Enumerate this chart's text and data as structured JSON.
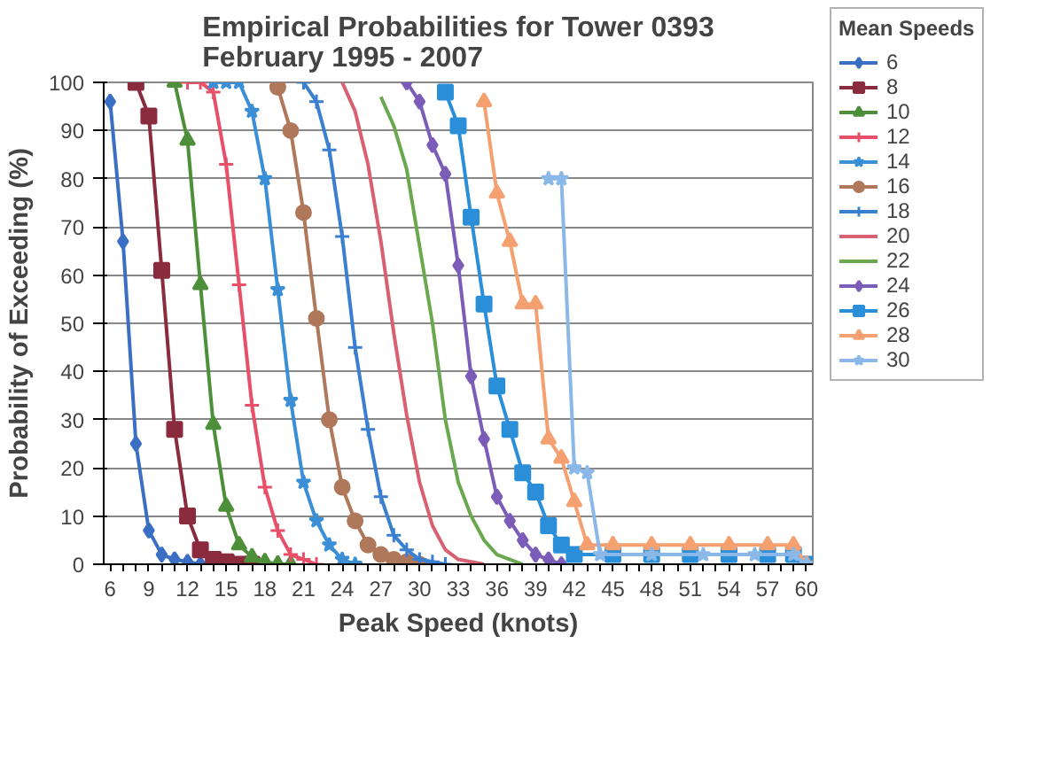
{
  "chart_data": {
    "type": "line",
    "title": "Empirical Probabilities for Tower 0393\nFebruary 1995 - 2007",
    "xlabel": "Peak Speed (knots)",
    "ylabel": "Probability of Exceeding (%)",
    "legend_title": "Mean Speeds",
    "legend": "right",
    "grid": "y",
    "line_style": "solid",
    "xlim": [
      5.5,
      60.5
    ],
    "ylim": [
      0,
      100
    ],
    "xticks": [
      6,
      {
        "value": 7,
        "label": null
      },
      {
        "value": 8,
        "label": null
      },
      9,
      {
        "value": 10,
        "label": null
      },
      {
        "value": 11,
        "label": null
      },
      12,
      {
        "value": 13,
        "label": null
      },
      {
        "value": 14,
        "label": null
      },
      15,
      {
        "value": 16,
        "label": null
      },
      {
        "value": 17,
        "label": null
      },
      18,
      {
        "value": 19,
        "label": null
      },
      {
        "value": 20,
        "label": null
      },
      21,
      {
        "value": 22,
        "label": null
      },
      {
        "value": 23,
        "label": null
      },
      24,
      {
        "value": 25,
        "label": null
      },
      {
        "value": 26,
        "label": null
      },
      27,
      {
        "value": 28,
        "label": null
      },
      {
        "value": 29,
        "label": null
      },
      30,
      {
        "value": 31,
        "label": null
      },
      {
        "value": 32,
        "label": null
      },
      33,
      {
        "value": 34,
        "label": null
      },
      {
        "value": 35,
        "label": null
      },
      36,
      {
        "value": 37,
        "label": null
      },
      {
        "value": 38,
        "label": null
      },
      39,
      {
        "value": 40,
        "label": null
      },
      {
        "value": 41,
        "label": null
      },
      42,
      {
        "value": 43,
        "label": null
      },
      {
        "value": 44,
        "label": null
      },
      45,
      {
        "value": 46,
        "label": null
      },
      {
        "value": 47,
        "label": null
      },
      48,
      {
        "value": 49,
        "label": null
      },
      {
        "value": 50,
        "label": null
      },
      51,
      {
        "value": 52,
        "label": null
      },
      {
        "value": 53,
        "label": null
      },
      54,
      {
        "value": 55,
        "label": null
      },
      {
        "value": 56,
        "label": null
      },
      57,
      {
        "value": 58,
        "label": null
      },
      {
        "value": 59,
        "label": null
      },
      60
    ],
    "yticks": [
      0,
      10,
      20,
      30,
      40,
      50,
      60,
      70,
      80,
      90,
      100
    ],
    "series": [
      {
        "name": "6",
        "color": "#3a6fc4",
        "marker": "diamond",
        "x": [
          6,
          7,
          8,
          9,
          10,
          11,
          12,
          13,
          14,
          15
        ],
        "values": [
          96,
          67,
          25,
          7,
          2,
          1,
          0.5,
          0,
          0,
          0
        ]
      },
      {
        "name": "8",
        "color": "#8b2b3e",
        "marker": "square",
        "x": [
          8,
          9,
          10,
          11,
          12,
          13,
          14,
          15,
          16,
          17
        ],
        "values": [
          100,
          93,
          61,
          28,
          10,
          3,
          1,
          0.5,
          0,
          0
        ]
      },
      {
        "name": "10",
        "color": "#4e8f3a",
        "marker": "triangle",
        "x": [
          11,
          12,
          13,
          14,
          15,
          16,
          17,
          18,
          19,
          20
        ],
        "values": [
          100,
          88,
          58,
          29,
          12,
          4,
          1.5,
          0.5,
          0,
          0
        ]
      },
      {
        "name": "12",
        "color": "#e8506a",
        "marker": "cross",
        "x": [
          12,
          13,
          14,
          15,
          16,
          17,
          18,
          19,
          20,
          21,
          22
        ],
        "values": [
          100,
          100,
          98,
          83,
          58,
          33,
          16,
          7,
          2,
          1,
          0
        ]
      },
      {
        "name": "14",
        "color": "#3b8fd6",
        "marker": "star",
        "x": [
          14,
          15,
          16,
          17,
          18,
          19,
          20,
          21,
          22,
          23,
          24,
          25
        ],
        "values": [
          100,
          100,
          100,
          94,
          80,
          57,
          34,
          17,
          9,
          4,
          1,
          0
        ]
      },
      {
        "name": "16",
        "color": "#b0785a",
        "marker": "circle",
        "x": [
          19,
          20,
          21,
          22,
          23,
          24,
          25,
          26,
          27,
          28,
          29,
          30
        ],
        "values": [
          99,
          90,
          73,
          51,
          30,
          16,
          9,
          4,
          2,
          1,
          0.5,
          0
        ]
      },
      {
        "name": "18",
        "color": "#3a7fd0",
        "marker": "cross",
        "x": [
          21,
          22,
          23,
          24,
          25,
          26,
          27,
          28,
          29,
          30,
          31,
          32
        ],
        "values": [
          100,
          96,
          86,
          68,
          45,
          28,
          14,
          6,
          3,
          1,
          0.5,
          0
        ]
      },
      {
        "name": "20",
        "color": "#d86070",
        "marker": "none",
        "x": [
          24,
          25,
          26,
          27,
          28,
          29,
          30,
          31,
          32,
          33,
          34,
          35
        ],
        "values": [
          100,
          94,
          83,
          67,
          48,
          31,
          17,
          8,
          3,
          1,
          0.5,
          0
        ]
      },
      {
        "name": "22",
        "color": "#6aa84f",
        "marker": "none",
        "x": [
          27,
          28,
          29,
          30,
          31,
          32,
          33,
          34,
          35,
          36,
          37,
          38
        ],
        "values": [
          97,
          91,
          82,
          66,
          50,
          30,
          17,
          10,
          5,
          2,
          1,
          0
        ]
      },
      {
        "name": "24",
        "color": "#7b5cb8",
        "marker": "diamond",
        "x": [
          29,
          30,
          31,
          32,
          33,
          34,
          35,
          36,
          37,
          38,
          39,
          40,
          41
        ],
        "values": [
          100,
          96,
          87,
          81,
          62,
          39,
          26,
          14,
          9,
          5,
          2,
          1,
          0
        ]
      },
      {
        "name": "26",
        "color": "#2a8fd8",
        "marker": "square",
        "x": [
          32,
          33,
          34,
          35,
          36,
          37,
          38,
          39,
          40,
          41,
          42,
          45,
          48,
          51,
          54,
          57,
          59,
          60
        ],
        "values": [
          98,
          91,
          72,
          54,
          37,
          28,
          19,
          15,
          8,
          4,
          2,
          2,
          2,
          2,
          2,
          2,
          2,
          0
        ]
      },
      {
        "name": "28",
        "color": "#f4a070",
        "marker": "triangle",
        "x": [
          35,
          36,
          37,
          38,
          39,
          40,
          41,
          42,
          43,
          45,
          48,
          51,
          54,
          57,
          59,
          60
        ],
        "values": [
          96,
          77,
          67,
          54,
          54,
          26,
          22,
          13,
          4,
          4,
          4,
          4,
          4,
          4,
          4,
          0
        ]
      },
      {
        "name": "30",
        "color": "#8ab8e8",
        "marker": "star",
        "x": [
          40,
          41,
          42,
          43,
          44,
          48,
          52,
          56,
          59,
          60
        ],
        "values": [
          80,
          80,
          20,
          19,
          2,
          2,
          2,
          2,
          2,
          0
        ]
      }
    ]
  }
}
